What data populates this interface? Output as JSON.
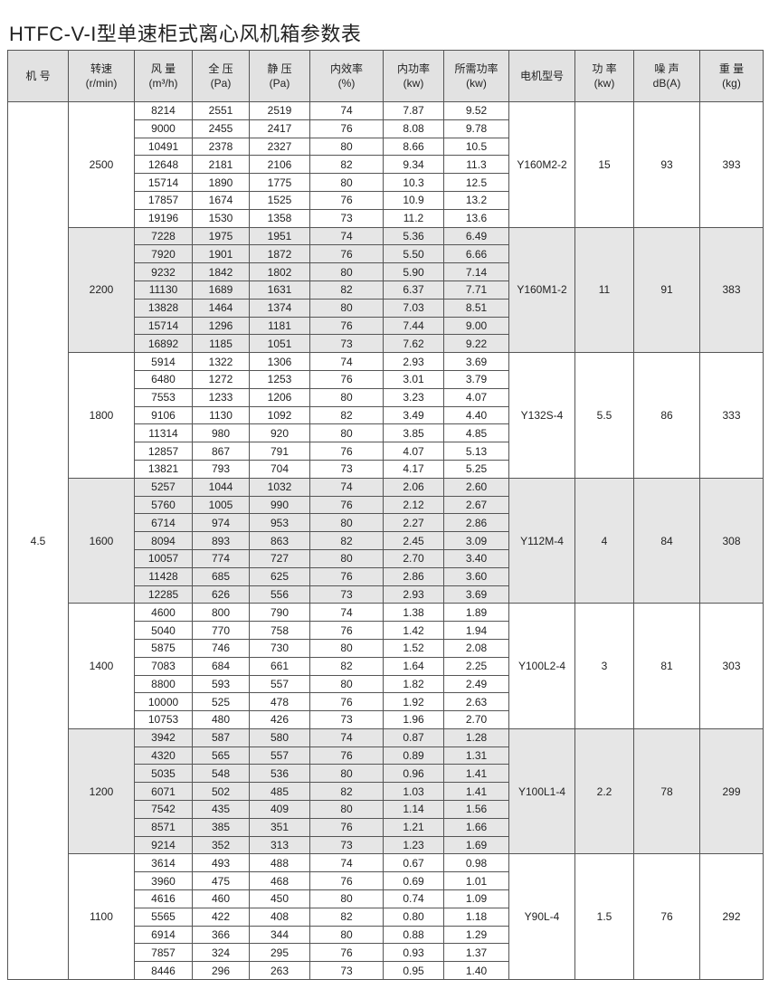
{
  "title": "HTFC-V-I型单速柜式离心风机箱参数表",
  "table": {
    "header": [
      [
        "机 号"
      ],
      [
        "转速",
        "(r/min)"
      ],
      [
        "风 量",
        "(m³/h)"
      ],
      [
        "全 压",
        "(Pa)"
      ],
      [
        "静 压",
        "(Pa)"
      ],
      [
        "内效率",
        "(%)"
      ],
      [
        "内功率",
        "(kw)"
      ],
      [
        "所需功率",
        "(kw)"
      ],
      [
        "电机型号"
      ],
      [
        "功 率",
        "(kw)"
      ],
      [
        "噪 声",
        "dB(A)"
      ],
      [
        "重 量",
        "(kg)"
      ]
    ],
    "machine_no": "4.5",
    "groups": [
      {
        "speed": "2500",
        "motor": "Y160M2-2",
        "power": "15",
        "noise": "93",
        "weight": "393",
        "rows": [
          [
            "8214",
            "2551",
            "2519",
            "74",
            "7.87",
            "9.52"
          ],
          [
            "9000",
            "2455",
            "2417",
            "76",
            "8.08",
            "9.78"
          ],
          [
            "10491",
            "2378",
            "2327",
            "80",
            "8.66",
            "10.5"
          ],
          [
            "12648",
            "2181",
            "2106",
            "82",
            "9.34",
            "11.3"
          ],
          [
            "15714",
            "1890",
            "1775",
            "80",
            "10.3",
            "12.5"
          ],
          [
            "17857",
            "1674",
            "1525",
            "76",
            "10.9",
            "13.2"
          ],
          [
            "19196",
            "1530",
            "1358",
            "73",
            "11.2",
            "13.6"
          ]
        ]
      },
      {
        "speed": "2200",
        "motor": "Y160M1-2",
        "power": "11",
        "noise": "91",
        "weight": "383",
        "rows": [
          [
            "7228",
            "1975",
            "1951",
            "74",
            "5.36",
            "6.49"
          ],
          [
            "7920",
            "1901",
            "1872",
            "76",
            "5.50",
            "6.66"
          ],
          [
            "9232",
            "1842",
            "1802",
            "80",
            "5.90",
            "7.14"
          ],
          [
            "11130",
            "1689",
            "1631",
            "82",
            "6.37",
            "7.71"
          ],
          [
            "13828",
            "1464",
            "1374",
            "80",
            "7.03",
            "8.51"
          ],
          [
            "15714",
            "1296",
            "1181",
            "76",
            "7.44",
            "9.00"
          ],
          [
            "16892",
            "1185",
            "1051",
            "73",
            "7.62",
            "9.22"
          ]
        ]
      },
      {
        "speed": "1800",
        "motor": "Y132S-4",
        "power": "5.5",
        "noise": "86",
        "weight": "333",
        "rows": [
          [
            "5914",
            "1322",
            "1306",
            "74",
            "2.93",
            "3.69"
          ],
          [
            "6480",
            "1272",
            "1253",
            "76",
            "3.01",
            "3.79"
          ],
          [
            "7553",
            "1233",
            "1206",
            "80",
            "3.23",
            "4.07"
          ],
          [
            "9106",
            "1130",
            "1092",
            "82",
            "3.49",
            "4.40"
          ],
          [
            "11314",
            "980",
            "920",
            "80",
            "3.85",
            "4.85"
          ],
          [
            "12857",
            "867",
            "791",
            "76",
            "4.07",
            "5.13"
          ],
          [
            "13821",
            "793",
            "704",
            "73",
            "4.17",
            "5.25"
          ]
        ]
      },
      {
        "speed": "1600",
        "motor": "Y112M-4",
        "power": "4",
        "noise": "84",
        "weight": "308",
        "rows": [
          [
            "5257",
            "1044",
            "1032",
            "74",
            "2.06",
            "2.60"
          ],
          [
            "5760",
            "1005",
            "990",
            "76",
            "2.12",
            "2.67"
          ],
          [
            "6714",
            "974",
            "953",
            "80",
            "2.27",
            "2.86"
          ],
          [
            "8094",
            "893",
            "863",
            "82",
            "2.45",
            "3.09"
          ],
          [
            "10057",
            "774",
            "727",
            "80",
            "2.70",
            "3.40"
          ],
          [
            "11428",
            "685",
            "625",
            "76",
            "2.86",
            "3.60"
          ],
          [
            "12285",
            "626",
            "556",
            "73",
            "2.93",
            "3.69"
          ]
        ]
      },
      {
        "speed": "1400",
        "motor": "Y100L2-4",
        "power": "3",
        "noise": "81",
        "weight": "303",
        "rows": [
          [
            "4600",
            "800",
            "790",
            "74",
            "1.38",
            "1.89"
          ],
          [
            "5040",
            "770",
            "758",
            "76",
            "1.42",
            "1.94"
          ],
          [
            "5875",
            "746",
            "730",
            "80",
            "1.52",
            "2.08"
          ],
          [
            "7083",
            "684",
            "661",
            "82",
            "1.64",
            "2.25"
          ],
          [
            "8800",
            "593",
            "557",
            "80",
            "1.82",
            "2.49"
          ],
          [
            "10000",
            "525",
            "478",
            "76",
            "1.92",
            "2.63"
          ],
          [
            "10753",
            "480",
            "426",
            "73",
            "1.96",
            "2.70"
          ]
        ]
      },
      {
        "speed": "1200",
        "motor": "Y100L1-4",
        "power": "2.2",
        "noise": "78",
        "weight": "299",
        "rows": [
          [
            "3942",
            "587",
            "580",
            "74",
            "0.87",
            "1.28"
          ],
          [
            "4320",
            "565",
            "557",
            "76",
            "0.89",
            "1.31"
          ],
          [
            "5035",
            "548",
            "536",
            "80",
            "0.96",
            "1.41"
          ],
          [
            "6071",
            "502",
            "485",
            "82",
            "1.03",
            "1.41"
          ],
          [
            "7542",
            "435",
            "409",
            "80",
            "1.14",
            "1.56"
          ],
          [
            "8571",
            "385",
            "351",
            "76",
            "1.21",
            "1.66"
          ],
          [
            "9214",
            "352",
            "313",
            "73",
            "1.23",
            "1.69"
          ]
        ]
      },
      {
        "speed": "1100",
        "motor": "Y90L-4",
        "power": "1.5",
        "noise": "76",
        "weight": "292",
        "rows": [
          [
            "3614",
            "493",
            "488",
            "74",
            "0.67",
            "0.98"
          ],
          [
            "3960",
            "475",
            "468",
            "76",
            "0.69",
            "1.01"
          ],
          [
            "4616",
            "460",
            "450",
            "80",
            "0.74",
            "1.09"
          ],
          [
            "5565",
            "422",
            "408",
            "82",
            "0.80",
            "1.18"
          ],
          [
            "6914",
            "366",
            "344",
            "80",
            "0.88",
            "1.29"
          ],
          [
            "7857",
            "324",
            "295",
            "76",
            "0.93",
            "1.37"
          ],
          [
            "8446",
            "296",
            "263",
            "73",
            "0.95",
            "1.40"
          ]
        ]
      }
    ]
  }
}
